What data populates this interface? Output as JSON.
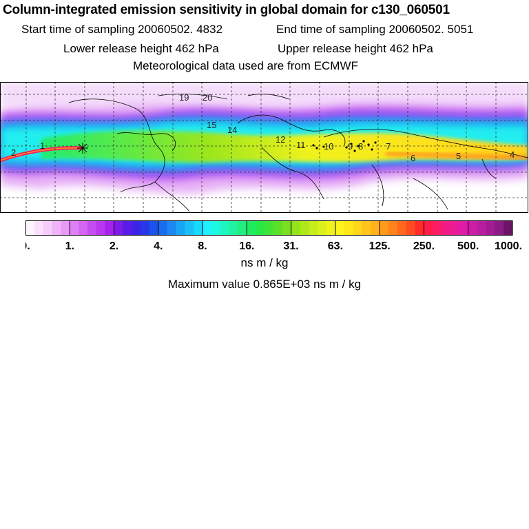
{
  "header": {
    "title": "Column-integrated emission sensitivity in global domain for c130_060501",
    "sampling_start_label": "Start time of sampling 20060502.  4832",
    "sampling_end_label": "End time of sampling 20060502.  5051",
    "lower_release_label": "Lower release height  462 hPa",
    "upper_release_label": "Upper release height  462 hPa",
    "met_data_label": "Meteorological data used are from ECMWF"
  },
  "colorbar": {
    "tick_labels": [
      "0.",
      "1.",
      "2.",
      "4.",
      "8.",
      "16.",
      "31.",
      "63.",
      "125.",
      "250.",
      "500.",
      "1000."
    ],
    "units": "ns m / kg",
    "segment_colors": [
      [
        "#fdf3fe",
        "#f9e1fc",
        "#f5cbfa",
        "#efb3f8",
        "#e99af6"
      ],
      [
        "#df7ff4",
        "#d366f3",
        "#c64cf1",
        "#b837ef",
        "#a424ee"
      ],
      [
        "#7d1ce9",
        "#5a1ce6",
        "#3c24e6",
        "#2838e8",
        "#1c52ea"
      ],
      [
        "#1a6cee",
        "#1a88f2",
        "#1aa4f5",
        "#1abff8",
        "#1ad8fb"
      ],
      [
        "#1ef0fc",
        "#1ef8e0",
        "#1ff5c0",
        "#20f2a0",
        "#20ef80"
      ],
      [
        "#20ec60",
        "#28e848",
        "#40e434",
        "#5cdf28",
        "#78e020"
      ],
      [
        "#94e41c",
        "#aee81a",
        "#c6ec1a",
        "#dcf01a",
        "#eef41a"
      ],
      [
        "#fcf41a",
        "#fde61a",
        "#fed61a",
        "#ffc41a",
        "#ffb01a"
      ],
      [
        "#ff9a1a",
        "#ff821a",
        "#ff681a",
        "#ff4c1e",
        "#ff2c28"
      ],
      [
        "#ff1c48",
        "#fb1c68",
        "#f31c84",
        "#e91c98",
        "#df1ca8"
      ],
      [
        "#cf1ca8",
        "#b91ca0",
        "#a21c94",
        "#8a1c84",
        "#6c1468"
      ]
    ]
  },
  "map": {
    "point_labels": [
      "2",
      "1",
      "19",
      "20",
      "15",
      "14",
      "12",
      "11",
      "10",
      "9",
      "8",
      "7",
      "6",
      "5",
      "4"
    ]
  },
  "max_value_label": "Maximum value  0.865E+03 ns m / kg"
}
